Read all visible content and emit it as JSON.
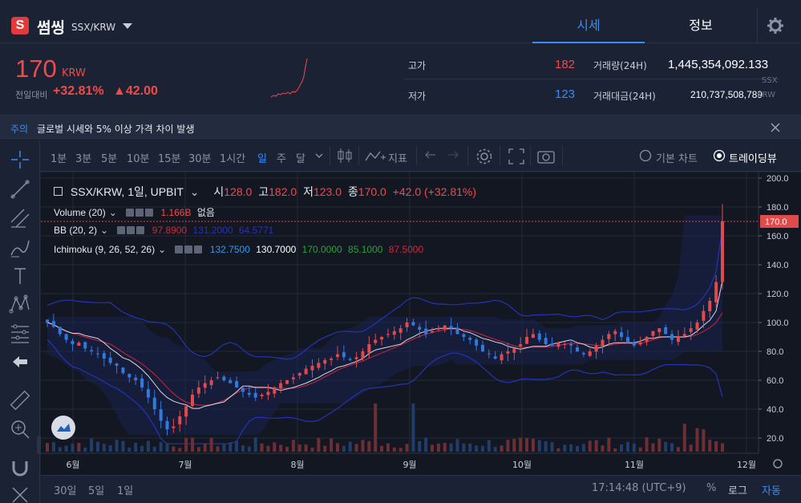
{
  "header": {
    "coin_name": "썸씽",
    "pair": "SSX/KRW",
    "logo_letter": "S",
    "tabs": [
      {
        "label": "시세",
        "active": true
      },
      {
        "label": "정보",
        "active": false
      }
    ],
    "settings_icon": "gear-icon"
  },
  "price": {
    "current": "170",
    "unit": "KRW",
    "change_label": "전일대비",
    "change_pct": "+32.81%",
    "change_abs": "▲42.00",
    "up_color": "#ef4b4b",
    "down_color": "#3a8cf0"
  },
  "stats": {
    "high_label": "고가",
    "high_value": "182",
    "low_label": "저가",
    "low_value": "123",
    "volume_label": "거래량(24H)",
    "volume_value": "1,445,354,092.133",
    "volume_unit": "SSX",
    "amount_label": "거래대금(24H)",
    "amount_value": "210,737,508,789",
    "amount_unit": "KRW"
  },
  "notice": {
    "tag": "주의",
    "text": "글로벌 시세와 5% 이상 가격 차이 발생"
  },
  "toolbar": {
    "timeframes": [
      "1분",
      "3분",
      "5분",
      "10분",
      "15분",
      "30분",
      "1시간",
      "일",
      "주",
      "달"
    ],
    "active_timeframe": "일",
    "indicator_label": "지표",
    "basic_chart_label": "기본 차트",
    "tradingview_label": "트레이딩뷰"
  },
  "legend": {
    "symbol": "SSX/KRW, 1일, UPBIT",
    "o_label": "시",
    "o": "128.0",
    "h_label": "고",
    "h": "182.0",
    "l_label": "저",
    "l": "123.0",
    "c_label": "종",
    "c": "170.0",
    "change": "+42.0 (+32.81%)",
    "volume_name": "Volume (20)",
    "volume_val": "1.166B",
    "volume_extra": "없음",
    "bb_name": "BB (20, 2)",
    "bb_vals": [
      "97.8900",
      "131.2000",
      "64.5771"
    ],
    "ichimoku_name": "Ichimoku (9, 26, 52, 26)",
    "ichimoku_vals": [
      "132.7500",
      "130.7000",
      "170.0000",
      "85.1000",
      "87.5000"
    ]
  },
  "bottom": {
    "ranges": [
      "30일",
      "5일",
      "1일"
    ],
    "time": "17:14:48 (UTC+9)",
    "pct": "%",
    "log": "로그",
    "auto": "자동"
  },
  "chart_data": {
    "type": "candlestick",
    "y_ticks": [
      "200.0",
      "180.0",
      "160.0",
      "140.0",
      "120.0",
      "100.0",
      "80.0",
      "60.0",
      "40.0",
      "20.0"
    ],
    "x_ticks": [
      "6월",
      "7월",
      "8월",
      "9월",
      "10월",
      "11월",
      "12월"
    ],
    "ylim": [
      0,
      200
    ],
    "last_price_label": "170.0",
    "closes": [
      100,
      97,
      92,
      88,
      85,
      86,
      82,
      80,
      78,
      75,
      72,
      70,
      65,
      62,
      60,
      55,
      48,
      40,
      32,
      26,
      28,
      35,
      42,
      50,
      55,
      58,
      60,
      62,
      60,
      58,
      55,
      52,
      50,
      48,
      50,
      52,
      55,
      58,
      60,
      62,
      65,
      68,
      70,
      72,
      74,
      75,
      78,
      76,
      74,
      76,
      80,
      85,
      88,
      90,
      92,
      94,
      96,
      100,
      98,
      95,
      92,
      94,
      96,
      98,
      96,
      92,
      90,
      88,
      84,
      80,
      78,
      75,
      78,
      80,
      82,
      85,
      90,
      92,
      88,
      85,
      84,
      86,
      85,
      84,
      80,
      78,
      80,
      84,
      88,
      92,
      94,
      90,
      86,
      84,
      86,
      90,
      94,
      96,
      92,
      88,
      90,
      92,
      96,
      100,
      108,
      115,
      128,
      170
    ],
    "volume_label": "Volume (20)"
  }
}
